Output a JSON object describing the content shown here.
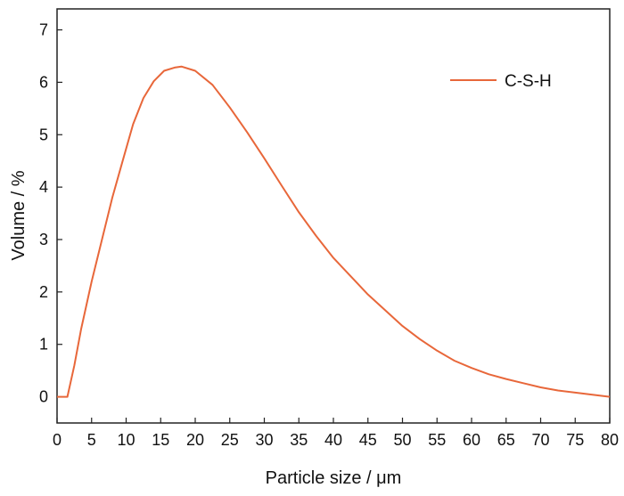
{
  "chart_data": {
    "type": "line",
    "xlabel": "Particle size / μm",
    "ylabel": "Volume / %",
    "xlim": [
      0,
      80
    ],
    "ylim": [
      -0.5,
      7.4
    ],
    "x_ticks": [
      0,
      5,
      10,
      15,
      20,
      25,
      30,
      35,
      40,
      45,
      50,
      55,
      60,
      65,
      70,
      75,
      80
    ],
    "y_ticks": [
      0,
      1,
      2,
      3,
      4,
      5,
      6,
      7
    ],
    "grid": false,
    "legend_position": "top-right",
    "series": [
      {
        "name": "C-S-H",
        "color": "#E8673A",
        "x": [
          0,
          1.5,
          2.5,
          3.5,
          5,
          6.5,
          8,
          9.5,
          11,
          12.5,
          14,
          15.5,
          17,
          18,
          20,
          22.5,
          25,
          27.5,
          30,
          32.5,
          35,
          37.5,
          40,
          42.5,
          45,
          47.5,
          50,
          52.5,
          55,
          57.5,
          60,
          62.5,
          65,
          67.5,
          70,
          72.5,
          75,
          77.5,
          80
        ],
        "y": [
          0,
          0,
          0.6,
          1.3,
          2.2,
          3.0,
          3.8,
          4.5,
          5.2,
          5.7,
          6.02,
          6.22,
          6.28,
          6.3,
          6.22,
          5.95,
          5.52,
          5.05,
          4.55,
          4.03,
          3.52,
          3.07,
          2.65,
          2.3,
          1.95,
          1.65,
          1.35,
          1.1,
          0.88,
          0.69,
          0.55,
          0.43,
          0.34,
          0.26,
          0.18,
          0.12,
          0.08,
          0.04,
          0.0
        ]
      }
    ]
  }
}
